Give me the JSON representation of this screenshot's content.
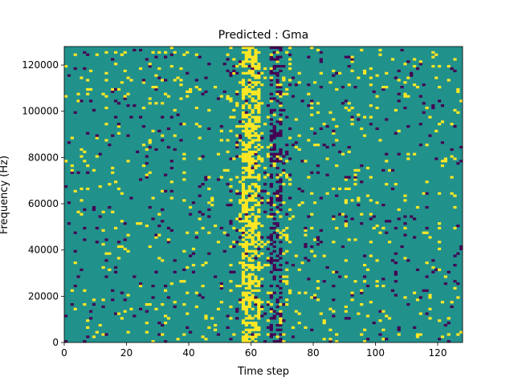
{
  "chart_data": {
    "type": "heatmap",
    "title": "Predicted : Gma",
    "xlabel": "Time step",
    "ylabel": "Frequency (Hz)",
    "xlim": [
      0,
      128
    ],
    "ylim": [
      0,
      128000
    ],
    "x_ticks": [
      0,
      20,
      40,
      60,
      80,
      100,
      120
    ],
    "y_ticks": [
      0,
      20000,
      40000,
      60000,
      80000,
      100000,
      120000
    ],
    "x_tick_labels": [
      "0",
      "20",
      "40",
      "60",
      "80",
      "100",
      "120"
    ],
    "y_tick_labels": [
      "0",
      "20000",
      "40000",
      "60000",
      "80000",
      "100000",
      "120000"
    ],
    "rows": 128,
    "cols": 128,
    "value_levels": [
      -1,
      0,
      1
    ],
    "colormap": {
      "-1": "#440154",
      "0": "#21918c",
      "1": "#fde725"
    },
    "background_value": 0,
    "dense_column_band_x": [
      53,
      72
    ],
    "dense_yellow_columns": [
      57,
      58,
      59,
      60,
      61,
      62
    ],
    "dense_purple_columns": [
      66,
      67,
      68,
      69
    ],
    "grid": false
  }
}
